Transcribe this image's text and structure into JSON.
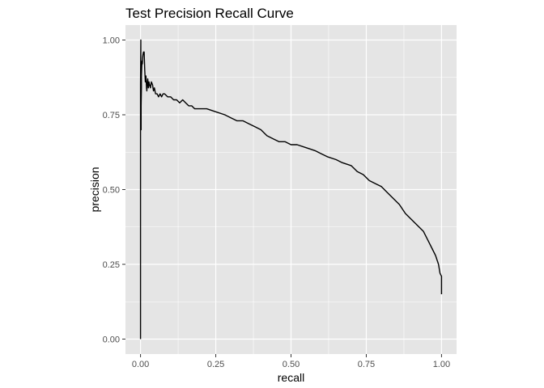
{
  "chart_data": {
    "type": "line",
    "title": "Test Precision Recall Curve",
    "xlabel": "recall",
    "ylabel": "precision",
    "xlim": [
      -0.05,
      1.05
    ],
    "ylim": [
      -0.05,
      1.05
    ],
    "x_ticks": [
      "0.00",
      "0.25",
      "0.50",
      "0.75",
      "1.00"
    ],
    "y_ticks": [
      "0.00",
      "0.25",
      "0.50",
      "0.75",
      "1.00"
    ],
    "x_tick_values": [
      0,
      0.25,
      0.5,
      0.75,
      1
    ],
    "y_tick_values": [
      0,
      0.25,
      0.5,
      0.75,
      1
    ],
    "grid": true,
    "legend": "none",
    "background_color": "#e5e5e5",
    "grid_color": "#ffffff",
    "line_color": "#000000",
    "series": [
      {
        "x": [
          0.0,
          0.0,
          0.0,
          0.001,
          0.001,
          0.002,
          0.002,
          0.003,
          0.003,
          0.004,
          0.005,
          0.006,
          0.007,
          0.008,
          0.01,
          0.012,
          0.014,
          0.016,
          0.018,
          0.02,
          0.021,
          0.022,
          0.024,
          0.026,
          0.028,
          0.03,
          0.033,
          0.036,
          0.04,
          0.043,
          0.046,
          0.05,
          0.055,
          0.06,
          0.065,
          0.07,
          0.075,
          0.08,
          0.09,
          0.1,
          0.11,
          0.12,
          0.13,
          0.14,
          0.15,
          0.16,
          0.17,
          0.18,
          0.19,
          0.2,
          0.22,
          0.25,
          0.28,
          0.3,
          0.32,
          0.34,
          0.36,
          0.38,
          0.4,
          0.42,
          0.44,
          0.46,
          0.48,
          0.5,
          0.52,
          0.55,
          0.58,
          0.6,
          0.62,
          0.65,
          0.67,
          0.7,
          0.72,
          0.74,
          0.76,
          0.78,
          0.8,
          0.82,
          0.84,
          0.86,
          0.88,
          0.9,
          0.92,
          0.94,
          0.95,
          0.96,
          0.97,
          0.98,
          0.99,
          0.995,
          1.0,
          1.0
        ],
        "y": [
          0.0,
          0.5,
          0.85,
          1.0,
          0.8,
          0.7,
          0.78,
          0.84,
          0.88,
          0.91,
          0.93,
          0.92,
          0.94,
          0.95,
          0.96,
          0.96,
          0.9,
          0.86,
          0.88,
          0.84,
          0.83,
          0.85,
          0.87,
          0.84,
          0.86,
          0.85,
          0.84,
          0.86,
          0.85,
          0.83,
          0.84,
          0.82,
          0.82,
          0.81,
          0.82,
          0.81,
          0.82,
          0.82,
          0.81,
          0.81,
          0.8,
          0.8,
          0.79,
          0.8,
          0.79,
          0.78,
          0.78,
          0.77,
          0.77,
          0.77,
          0.77,
          0.76,
          0.75,
          0.74,
          0.73,
          0.73,
          0.72,
          0.71,
          0.7,
          0.68,
          0.67,
          0.66,
          0.66,
          0.65,
          0.65,
          0.64,
          0.63,
          0.62,
          0.61,
          0.6,
          0.59,
          0.58,
          0.56,
          0.55,
          0.53,
          0.52,
          0.51,
          0.49,
          0.47,
          0.45,
          0.42,
          0.4,
          0.38,
          0.36,
          0.34,
          0.32,
          0.3,
          0.28,
          0.25,
          0.22,
          0.21,
          0.15
        ]
      }
    ]
  }
}
